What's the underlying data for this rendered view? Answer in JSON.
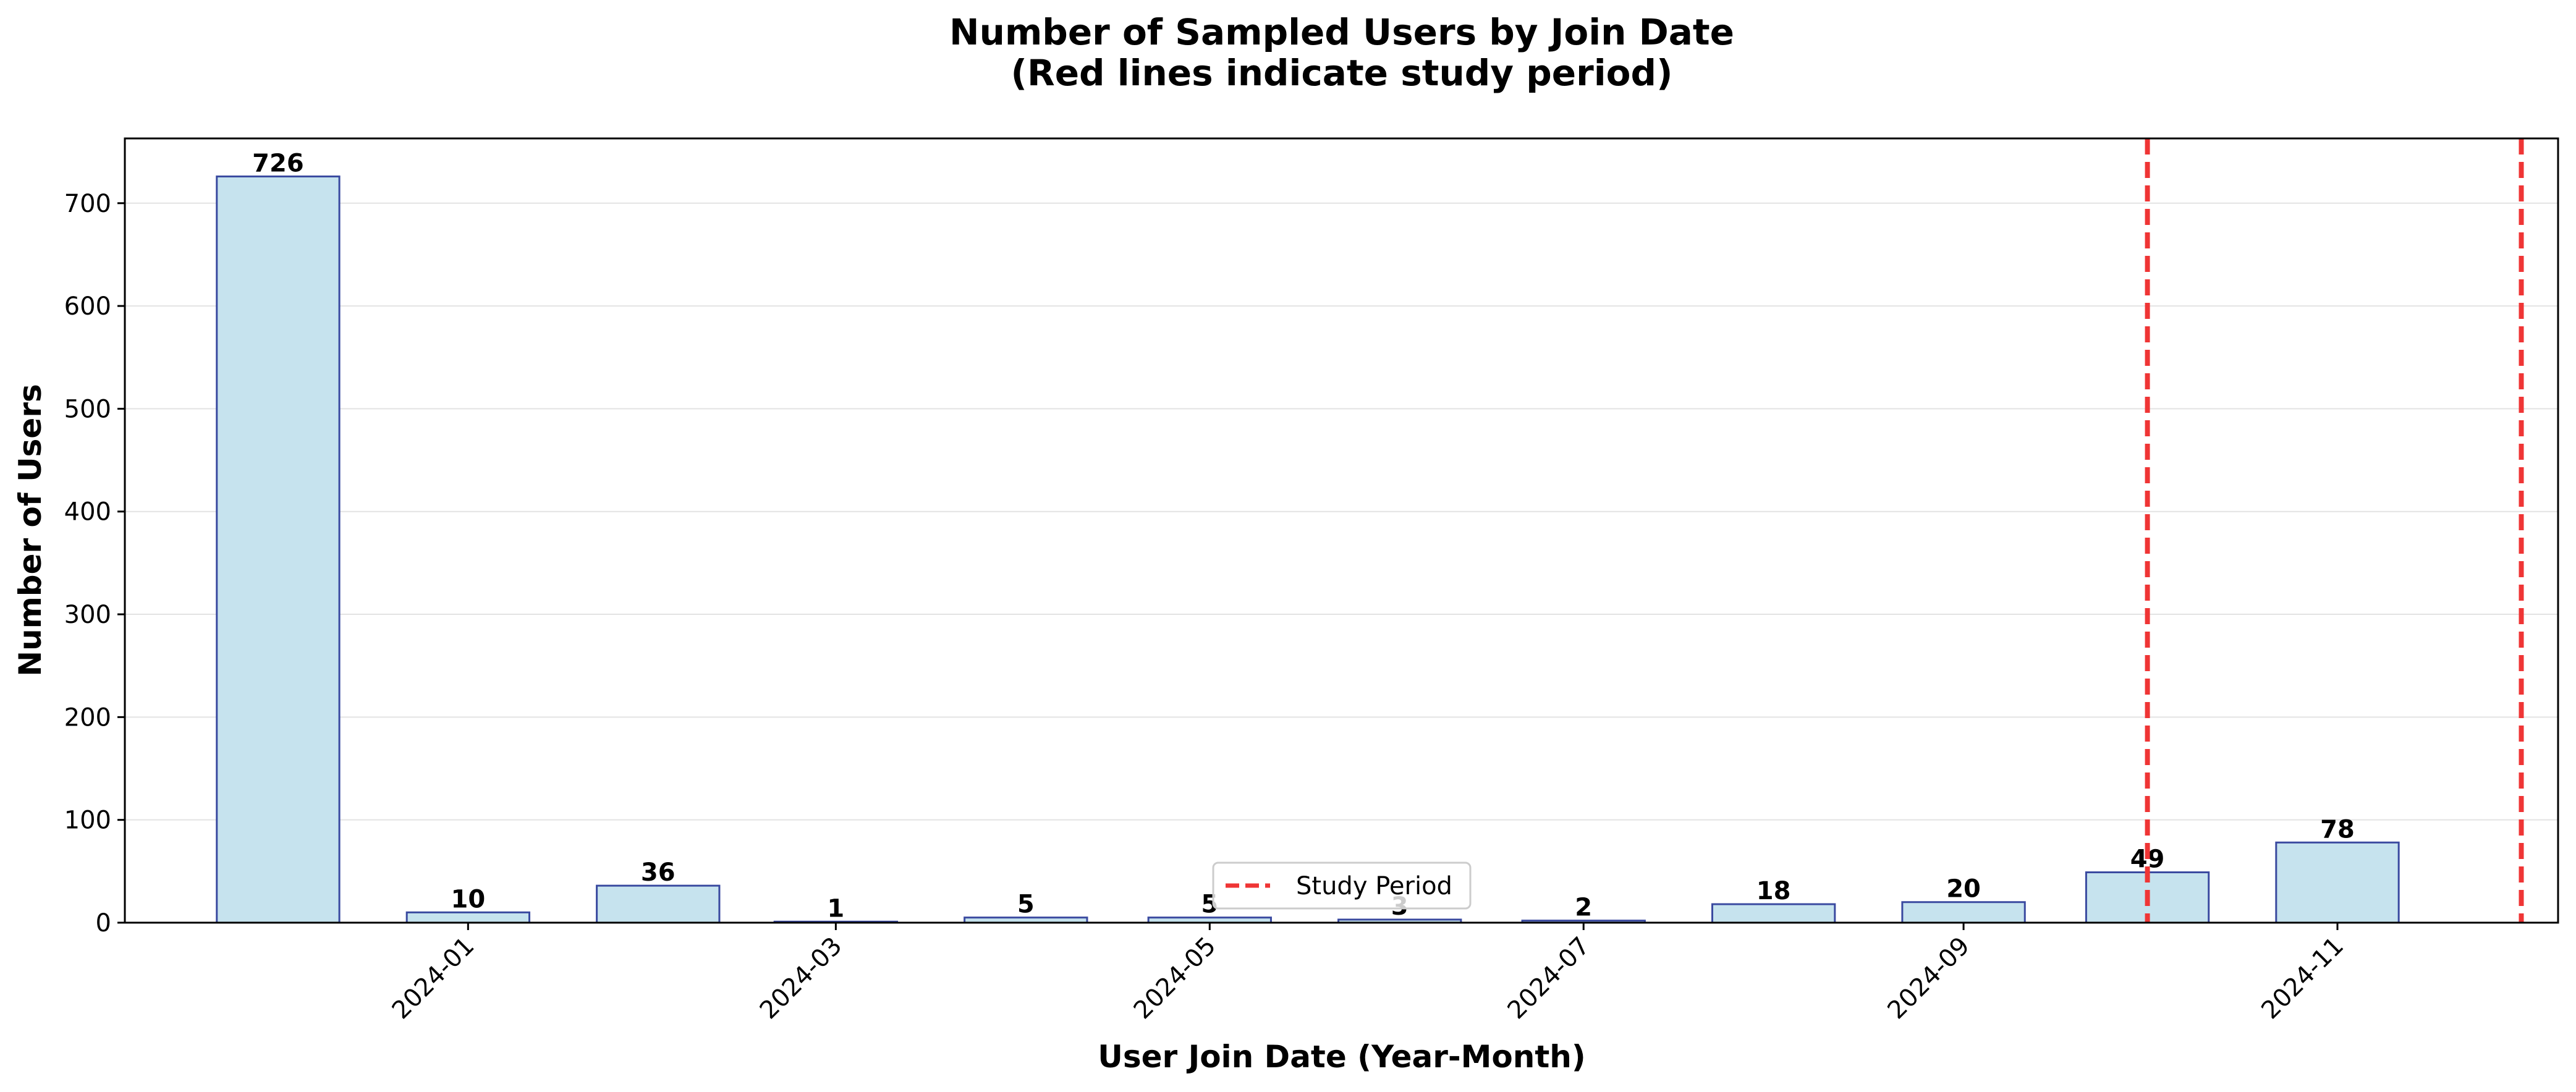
{
  "chart_data": {
    "type": "bar",
    "title_line1": "Number of Sampled Users by Join Date",
    "title_line2": "(Red lines indicate study period)",
    "xlabel": "User Join Date (Year-Month)",
    "ylabel": "Number of Users",
    "bars": [
      {
        "date": "2023-12",
        "value": 726
      },
      {
        "date": "2024-01",
        "value": 10
      },
      {
        "date": "2024-02",
        "value": 36
      },
      {
        "date": "2024-03",
        "value": 1
      },
      {
        "date": "2024-04",
        "value": 5
      },
      {
        "date": "2024-05",
        "value": 5
      },
      {
        "date": "2024-06",
        "value": 3
      },
      {
        "date": "2024-07",
        "value": 2
      },
      {
        "date": "2024-08",
        "value": 18
      },
      {
        "date": "2024-09",
        "value": 20
      },
      {
        "date": "2024-10",
        "value": 49
      },
      {
        "date": "2024-11",
        "value": 78
      }
    ],
    "x_tick_labels": [
      "2024-01",
      "2024-03",
      "2024-05",
      "2024-07",
      "2024-09",
      "2024-11"
    ],
    "xlim": [
      "2023-11-06",
      "2024-12-07"
    ],
    "ylim": [
      0,
      763
    ],
    "y_ticks": [
      0,
      100,
      200,
      300,
      400,
      500,
      600,
      700
    ],
    "grid": "y-axis, light gray",
    "study_period": {
      "label": "Study Period",
      "start": "2024-10-01",
      "end": "2024-12-01",
      "color": "#ef3535"
    },
    "legend_position": "lower center",
    "bar_fill": "#c6e3ee",
    "bar_edge": "#3a4aa0"
  }
}
